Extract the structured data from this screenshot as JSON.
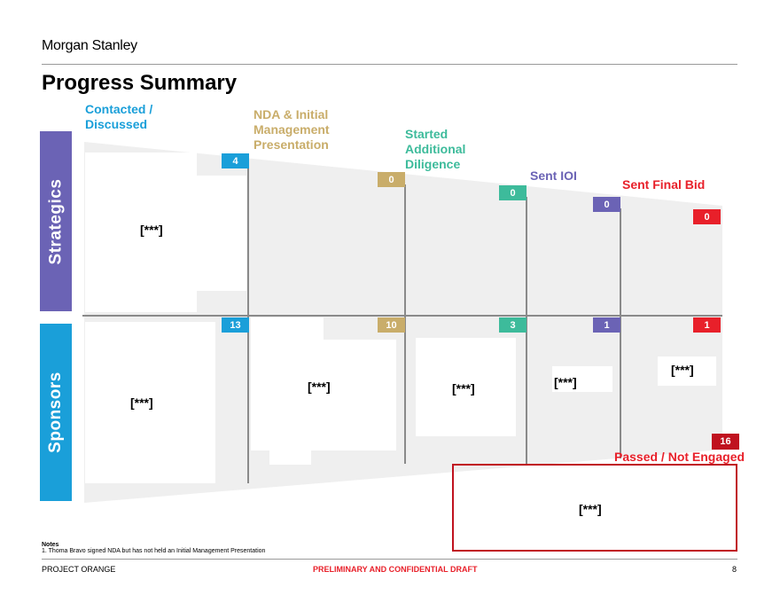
{
  "header": {
    "brand": "Morgan Stanley",
    "title": "Progress Summary"
  },
  "stages": [
    {
      "line1": "Contacted /",
      "line2": "Discussed",
      "line3": "",
      "color": "#1a9fd9"
    },
    {
      "line1": "NDA & Initial",
      "line2": "Management",
      "line3": "Presentation",
      "color": "#c9ad6a"
    },
    {
      "line1": "Started",
      "line2": "Additional",
      "line3": "Diligence",
      "color": "#3dbb9b"
    },
    {
      "line1": "Sent IOI",
      "line2": "",
      "line3": "",
      "color": "#6b63b5"
    },
    {
      "line1": "Sent Final Bid",
      "line2": "",
      "line3": "",
      "color": "#e8202a"
    }
  ],
  "rows": {
    "strategics": {
      "label": "Strategics",
      "color": "#6b63b5"
    },
    "sponsors": {
      "label": "Sponsors",
      "color": "#1a9fd9"
    }
  },
  "strategics_counts": [
    "4",
    "0",
    "0",
    "0",
    "0"
  ],
  "sponsors_counts": [
    "13",
    "10",
    "3",
    "1",
    "1"
  ],
  "passed": {
    "label": "Passed / Not Engaged",
    "count": "16",
    "color": "#c0121f"
  },
  "placeholder": "[***]",
  "notes": {
    "heading": "Notes",
    "item1": "1.  Thoma Bravo signed NDA but has not held an Initial Management Presentation"
  },
  "footer": {
    "project": "PROJECT ORANGE",
    "confidential": "PRELIMINARY AND CONFIDENTIAL DRAFT",
    "page": "8"
  }
}
